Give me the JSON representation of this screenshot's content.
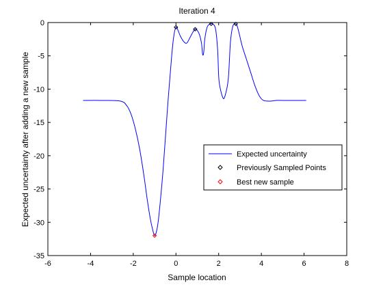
{
  "chart_data": {
    "type": "line",
    "title": "Iteration 4",
    "xlabel": "Sample location",
    "ylabel": "Expected uncertainty after adding a new sample",
    "xlim": [
      -6,
      8
    ],
    "ylim": [
      -35,
      0
    ],
    "xticks": [
      -6,
      -4,
      -2,
      0,
      2,
      4,
      6,
      8
    ],
    "yticks": [
      0,
      -5,
      -10,
      -15,
      -20,
      -25,
      -30,
      -35
    ],
    "xtick_labels": [
      "-6",
      "-4",
      "-2",
      "0",
      "2",
      "4",
      "6",
      "8"
    ],
    "ytick_labels": [
      "0",
      "-5",
      "-10",
      "-15",
      "-20",
      "-25",
      "-30",
      "-35"
    ],
    "grid": false,
    "legend_position": "center-right",
    "series": [
      {
        "name": "Expected uncertainty",
        "style": "line",
        "color": "#0000ff",
        "x": [
          -4.35,
          -3.5,
          -2.6,
          -2.3,
          -2.1,
          -1.9,
          -1.7,
          -1.5,
          -1.35,
          -1.2,
          -1.1,
          -1.0,
          -0.9,
          -0.8,
          -0.6,
          -0.4,
          -0.2,
          -0.1,
          0.0,
          0.1,
          0.2,
          0.35,
          0.5,
          0.65,
          0.8,
          0.9,
          1.0,
          1.1,
          1.2,
          1.25,
          1.3,
          1.35,
          1.45,
          1.55,
          1.7,
          1.85,
          1.95,
          2.0,
          2.05,
          2.2,
          2.3,
          2.45,
          2.55,
          2.65,
          2.75,
          2.85,
          2.95,
          3.1,
          3.3,
          3.5,
          3.7,
          3.9,
          4.1,
          4.4,
          4.7,
          5.0,
          6.1
        ],
        "y": [
          -11.7,
          -11.7,
          -11.8,
          -12.5,
          -13.8,
          -16.0,
          -19.0,
          -23.0,
          -26.5,
          -29.5,
          -31.0,
          -32.0,
          -31.2,
          -29.0,
          -22.0,
          -13.0,
          -5.0,
          -2.0,
          -0.7,
          -1.2,
          -2.0,
          -2.8,
          -3.1,
          -2.3,
          -1.4,
          -1.0,
          -1.2,
          -1.8,
          -3.2,
          -4.8,
          -4.5,
          -2.5,
          -0.8,
          -0.3,
          -0.2,
          -0.9,
          -4.0,
          -8.0,
          -9.5,
          -11.3,
          -11.0,
          -8.5,
          -3.0,
          -0.7,
          -0.2,
          -0.4,
          -1.5,
          -3.5,
          -5.5,
          -7.5,
          -9.5,
          -11.0,
          -11.7,
          -11.8,
          -11.7,
          -11.7,
          -11.7
        ]
      },
      {
        "name": "Previously Sampled Points",
        "style": "marker",
        "marker": "diamond",
        "color": "#000000",
        "x": [
          0.0,
          0.9,
          1.65,
          2.8
        ],
        "y": [
          -0.7,
          -1.0,
          -0.2,
          -0.2
        ]
      },
      {
        "name": "Best new sample",
        "style": "marker",
        "marker": "diamond",
        "color": "#ff0000",
        "x": [
          -1.0
        ],
        "y": [
          -32.0
        ]
      }
    ]
  }
}
